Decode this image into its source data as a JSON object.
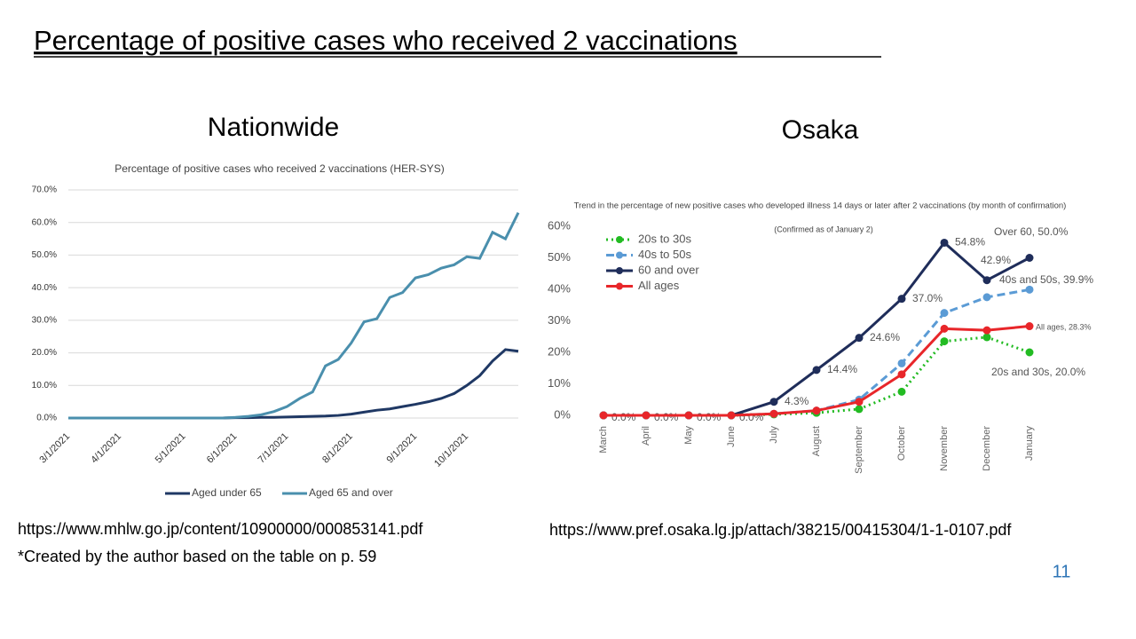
{
  "slide": {
    "title": "Percentage of positive cases who received 2 vaccinations",
    "headings": [
      "Nationwide",
      "Osaka"
    ],
    "sources": [
      "https://www.mhlw.go.jp/content/10900000/000853141.pdf",
      "https://www.pref.osaka.lg.jp/attach/38215/00415304/1-1-0107.pdf"
    ],
    "note": "*Created by the author based on the table on p. 59",
    "page_number": "11"
  },
  "chart_data": [
    {
      "type": "line",
      "title": "Percentage of positive cases who received 2 vaccinations (HER-SYS)",
      "categories": [
        "3/1/2021",
        null,
        null,
        null,
        "4/1/2021",
        null,
        null,
        null,
        null,
        "5/1/2021",
        null,
        null,
        null,
        "6/1/2021",
        null,
        null,
        null,
        "7/1/2021",
        null,
        null,
        null,
        null,
        "8/1/2021",
        null,
        null,
        null,
        null,
        "9/1/2021",
        null,
        null,
        null,
        "10/1/2021",
        null,
        null,
        null,
        null
      ],
      "series": [
        {
          "name": "Aged under 65",
          "color": "#1f3864",
          "values": [
            0,
            0,
            0,
            0,
            0,
            0,
            0,
            0,
            0,
            0,
            0,
            0,
            0,
            0.1,
            0.1,
            0.2,
            0.2,
            0.3,
            0.4,
            0.5,
            0.6,
            0.8,
            1.2,
            1.8,
            2.4,
            2.8,
            3.5,
            4.2,
            5,
            6,
            7.5,
            10,
            13,
            17.5,
            21,
            20.5
          ]
        },
        {
          "name": "Aged 65 and over",
          "color": "#4a8fad",
          "values": [
            0,
            0,
            0,
            0,
            0,
            0,
            0,
            0,
            0,
            0,
            0,
            0,
            0,
            0.2,
            0.5,
            1,
            2,
            3.5,
            6,
            8,
            16,
            18,
            23,
            29.5,
            30.5,
            37,
            38.5,
            43,
            44,
            46,
            47,
            49.5,
            49,
            57,
            55,
            63
          ]
        }
      ],
      "ylim": [
        0,
        70
      ],
      "yticks": [
        {
          "value": 0,
          "label": "0.0%"
        },
        {
          "value": 10,
          "label": "10.0%"
        },
        {
          "value": 20,
          "label": "20.0%"
        },
        {
          "value": 30,
          "label": "30.0%"
        },
        {
          "value": 40,
          "label": "40.0%"
        },
        {
          "value": 50,
          "label": "50.0%"
        },
        {
          "value": 60,
          "label": "60.0%"
        },
        {
          "value": 70,
          "label": "70.0%"
        }
      ],
      "grid": true,
      "legend": "bottom"
    },
    {
      "type": "line",
      "title": "Trend in the percentage of new positive cases who developed illness 14 days or later after 2 vaccinations (by month of confirmation)",
      "subtitle": "(Confirmed as of January 2)",
      "categories": [
        "March",
        "April",
        "May",
        "June",
        "July",
        "August",
        "September",
        "October",
        "November",
        "December",
        "January"
      ],
      "series": [
        {
          "name": "20s to 30s",
          "color": "#22bb22",
          "values": [
            0,
            0,
            0,
            0,
            0.3,
            0.8,
            2,
            7.5,
            23.5,
            24.8,
            20.0
          ],
          "value_labels": [
            null,
            null,
            null,
            null,
            null,
            null,
            null,
            null,
            null,
            null,
            "20s and 30s, 20.0%"
          ]
        },
        {
          "name": "40s to 50s",
          "color": "#5b9bd5",
          "values": [
            0,
            0,
            0,
            0,
            0.5,
            1.5,
            5,
            16.5,
            32.5,
            37.5,
            39.9
          ],
          "value_labels": [
            null,
            null,
            null,
            null,
            null,
            null,
            null,
            null,
            null,
            null,
            "40s and 50s, 39.9%"
          ]
        },
        {
          "name": "60 and over",
          "color": "#1f2d5a",
          "values": [
            0,
            0,
            0,
            0,
            4.3,
            14.4,
            24.6,
            37.0,
            54.8,
            42.9,
            50.0
          ],
          "value_labels": [
            "0.0%",
            "0.0%",
            "0.0%",
            "0.0%",
            "4.3%",
            "14.4%",
            "24.6%",
            "37.0%",
            "54.8%",
            "42.9%",
            "Over 60, 50.0%"
          ]
        },
        {
          "name": "All ages",
          "color": "#e8262a",
          "values": [
            0,
            0,
            0,
            0,
            0.5,
            1.5,
            4.3,
            13,
            27.5,
            27,
            28.3
          ],
          "value_labels": [
            null,
            null,
            null,
            null,
            null,
            null,
            null,
            null,
            null,
            null,
            "All ages, 28.3%"
          ]
        }
      ],
      "ylim": [
        0,
        60
      ],
      "yticks": [
        {
          "value": 0,
          "label": "0%"
        },
        {
          "value": 10,
          "label": "10%"
        },
        {
          "value": 20,
          "label": "20%"
        },
        {
          "value": 30,
          "label": "30%"
        },
        {
          "value": 40,
          "label": "40%"
        },
        {
          "value": 50,
          "label": "50%"
        },
        {
          "value": 60,
          "label": "60%"
        }
      ],
      "grid": false,
      "legend": "top-left"
    }
  ]
}
